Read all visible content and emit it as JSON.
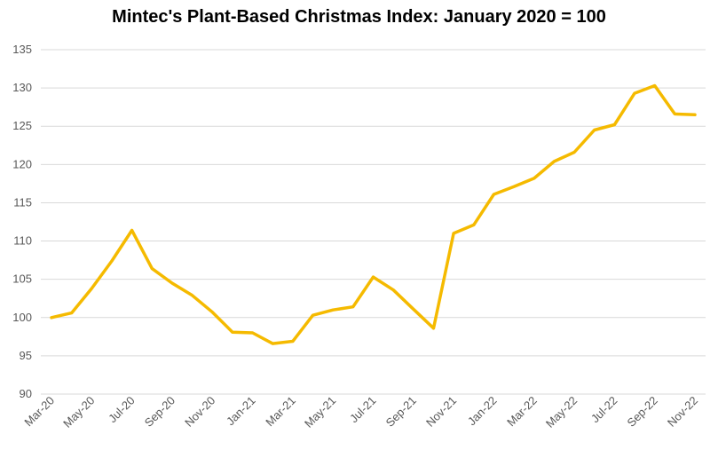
{
  "chart_data": {
    "type": "line",
    "title": "Mintec's Plant-Based Christmas Index: January 2020 = 100",
    "xlabel": "",
    "ylabel": "",
    "ylim": [
      90,
      135
    ],
    "yticks": [
      90,
      95,
      100,
      105,
      110,
      115,
      120,
      125,
      130,
      135
    ],
    "grid": true,
    "legend": "none",
    "x": [
      "Mar-20",
      "Apr-20",
      "May-20",
      "Jun-20",
      "Jul-20",
      "Aug-20",
      "Sep-20",
      "Oct-20",
      "Nov-20",
      "Dec-20",
      "Jan-21",
      "Feb-21",
      "Mar-21",
      "Apr-21",
      "May-21",
      "Jun-21",
      "Jul-21",
      "Aug-21",
      "Sep-21",
      "Oct-21",
      "Nov-21",
      "Dec-21",
      "Jan-22",
      "Feb-22",
      "Mar-22",
      "Apr-22",
      "May-22",
      "Jun-22",
      "Jul-22",
      "Aug-22",
      "Sep-22",
      "Oct-22",
      "Nov-22"
    ],
    "xtick_labels": [
      "Mar-20",
      "May-20",
      "Jul-20",
      "Sep-20",
      "Nov-20",
      "Jan-21",
      "Mar-21",
      "May-21",
      "Jul-21",
      "Sep-21",
      "Nov-21",
      "Jan-22",
      "Mar-22",
      "May-22",
      "Jul-22",
      "Sep-22",
      "Nov-22"
    ],
    "series": [
      {
        "values": [
          100.0,
          100.6,
          103.8,
          107.4,
          111.4,
          106.4,
          104.5,
          102.9,
          100.7,
          98.1,
          98.0,
          96.6,
          96.9,
          100.3,
          101.0,
          101.4,
          105.3,
          103.6,
          101.1,
          98.6,
          111.0,
          112.1,
          116.1,
          117.1,
          118.2,
          120.4,
          121.6,
          124.5,
          125.2,
          129.3,
          130.3,
          126.6,
          126.5
        ]
      }
    ],
    "line_color": "#F5BA00",
    "grid_color": "#D9D9D9"
  }
}
